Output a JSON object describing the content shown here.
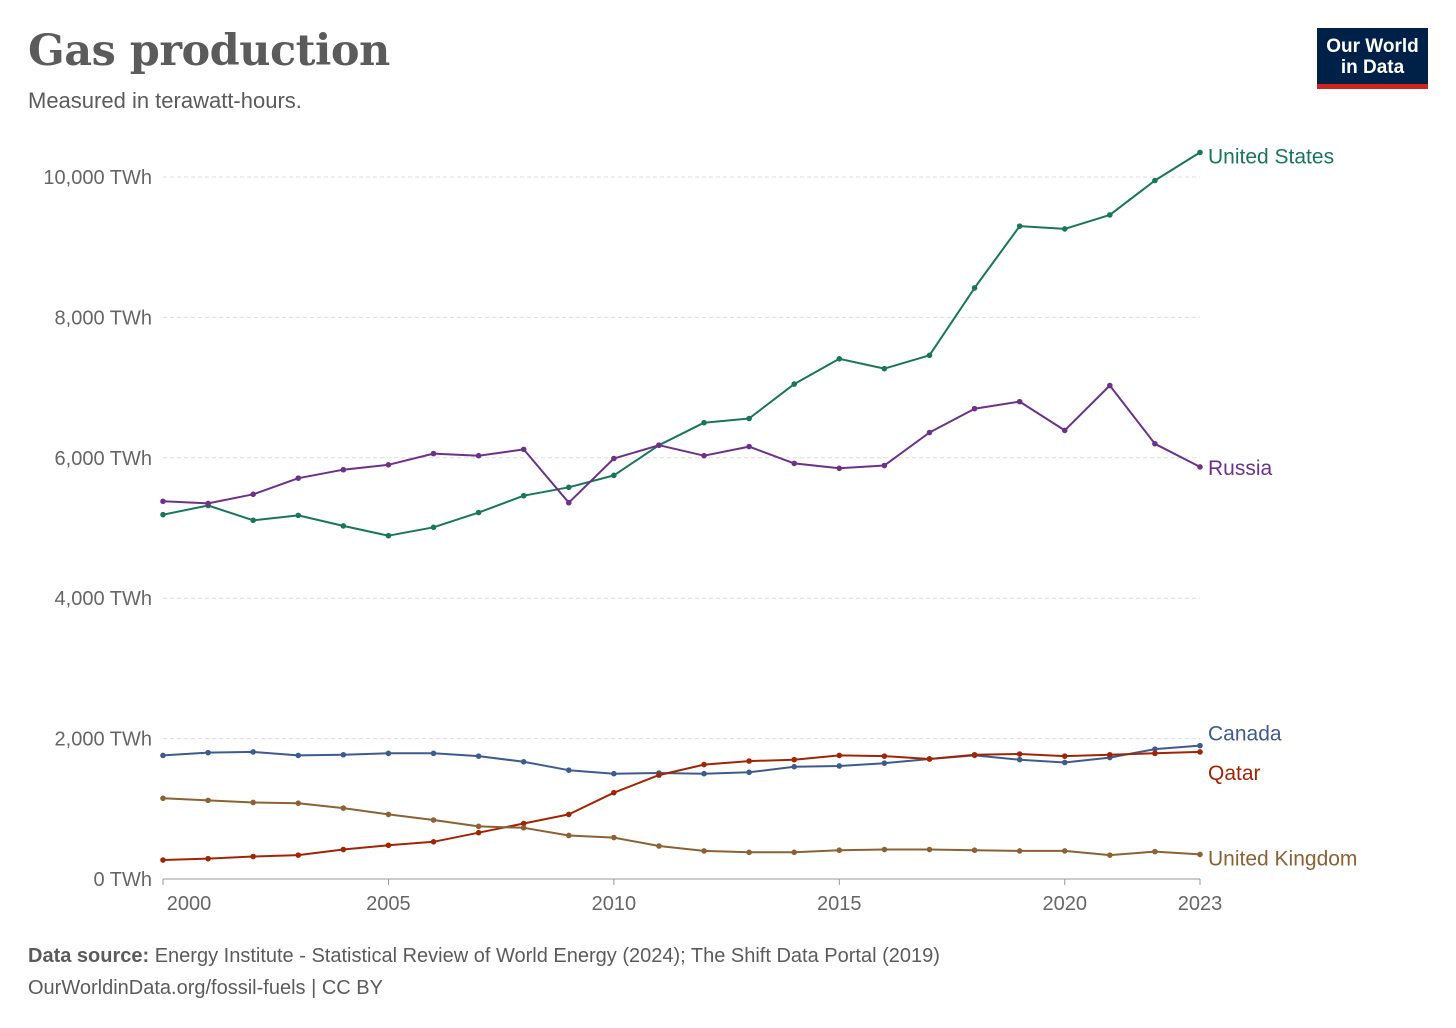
{
  "header": {
    "title": "Gas production",
    "subtitle": "Measured in terawatt-hours."
  },
  "logo": {
    "line1": "Our World",
    "line2": "in Data"
  },
  "footer": {
    "source_label": "Data source:",
    "source_text": "Energy Institute - Statistical Review of World Energy (2024); The Shift Data Portal (2019)",
    "link": "OurWorldinData.org/fossil-fuels",
    "license": "| CC BY"
  },
  "chart_data": {
    "type": "line",
    "title": "Gas production",
    "subtitle": "Measured in terawatt-hours.",
    "xlabel": "",
    "ylabel": "",
    "xlim": [
      2000,
      2023
    ],
    "ylim": [
      0,
      10000
    ],
    "x_ticks": [
      {
        "value": 2000,
        "label": "2000"
      },
      {
        "value": 2005,
        "label": "2005"
      },
      {
        "value": 2010,
        "label": "2010"
      },
      {
        "value": 2015,
        "label": "2015"
      },
      {
        "value": 2020,
        "label": "2020"
      },
      {
        "value": 2023,
        "label": "2023"
      }
    ],
    "y_ticks": [
      {
        "value": 0,
        "label": "0 TWh"
      },
      {
        "value": 2000,
        "label": "2,000 TWh"
      },
      {
        "value": 4000,
        "label": "4,000 TWh"
      },
      {
        "value": 6000,
        "label": "6,000 TWh"
      },
      {
        "value": 8000,
        "label": "8,000 TWh"
      },
      {
        "value": 10000,
        "label": "10,000 TWh"
      }
    ],
    "grid": "horizontal",
    "legend": "right-end labels",
    "x": [
      2000,
      2001,
      2002,
      2003,
      2004,
      2005,
      2006,
      2007,
      2008,
      2009,
      2010,
      2011,
      2012,
      2013,
      2014,
      2015,
      2016,
      2017,
      2018,
      2019,
      2020,
      2021,
      2022,
      2023
    ],
    "series": [
      {
        "name": "United States",
        "color": "#18765a",
        "values": [
          5190,
          5320,
          5110,
          5180,
          5030,
          4890,
          5010,
          5220,
          5460,
          5580,
          5750,
          6180,
          6500,
          6560,
          7050,
          7410,
          7270,
          7460,
          8420,
          9300,
          9260,
          9460,
          9950,
          10350
        ]
      },
      {
        "name": "Russia",
        "color": "#6d3189",
        "values": [
          5380,
          5350,
          5480,
          5710,
          5830,
          5900,
          6060,
          6030,
          6120,
          5360,
          5990,
          6180,
          6030,
          6160,
          5920,
          5850,
          5890,
          6360,
          6700,
          6800,
          6390,
          7030,
          6200,
          5870
        ]
      },
      {
        "name": "Canada",
        "color": "#3e5b8e",
        "values": [
          1760,
          1800,
          1810,
          1760,
          1770,
          1790,
          1790,
          1750,
          1670,
          1550,
          1500,
          1510,
          1500,
          1520,
          1600,
          1610,
          1650,
          1710,
          1760,
          1700,
          1660,
          1730,
          1850,
          1900
        ]
      },
      {
        "name": "Qatar",
        "color": "#a12504",
        "values": [
          270,
          290,
          320,
          340,
          420,
          480,
          530,
          660,
          790,
          920,
          1230,
          1480,
          1630,
          1680,
          1700,
          1760,
          1750,
          1710,
          1770,
          1780,
          1750,
          1770,
          1790,
          1810
        ]
      },
      {
        "name": "United Kingdom",
        "color": "#8b6234",
        "values": [
          1150,
          1120,
          1090,
          1080,
          1010,
          920,
          840,
          750,
          730,
          620,
          590,
          470,
          400,
          380,
          380,
          410,
          420,
          420,
          410,
          400,
          400,
          340,
          390,
          350
        ]
      }
    ]
  }
}
